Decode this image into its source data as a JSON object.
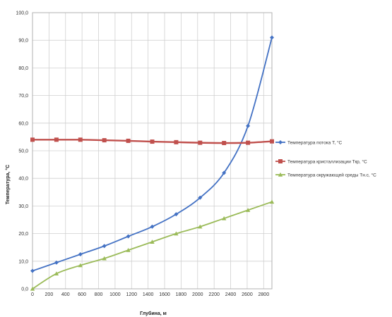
{
  "chart_data": {
    "type": "line",
    "title": "",
    "xlabel": "Глубина, м",
    "ylabel": "Температура, °С",
    "xlim": [
      0,
      2900
    ],
    "ylim": [
      0,
      100
    ],
    "grid": true,
    "legend_position": "right",
    "x_ticks": [
      0,
      200,
      400,
      600,
      800,
      1000,
      1200,
      1400,
      1600,
      1800,
      2000,
      2200,
      2400,
      2600,
      2800
    ],
    "y_ticks": [
      0,
      10,
      20,
      30,
      40,
      50,
      60,
      70,
      80,
      90,
      100
    ],
    "y_tick_labels": [
      "0,0",
      "10,0",
      "20,0",
      "30,0",
      "40,0",
      "50,0",
      "60,0",
      "70,0",
      "80,0",
      "90,0",
      "100,0"
    ],
    "series": [
      {
        "name": "Температура потока Т, °С",
        "color": "#4472c4",
        "marker": "diamond",
        "x": [
          0,
          290,
          580,
          870,
          1160,
          1450,
          1740,
          2030,
          2320,
          2610,
          2900
        ],
        "y": [
          6.5,
          9.5,
          12.5,
          15.5,
          19.0,
          22.5,
          27.0,
          33.0,
          42.0,
          59.0,
          91.0
        ]
      },
      {
        "name": "Температура кристаллизации Ткр, °С",
        "color": "#c0504d",
        "marker": "square",
        "x": [
          0,
          290,
          580,
          870,
          1160,
          1450,
          1740,
          2030,
          2320,
          2610,
          2900
        ],
        "y": [
          54.0,
          54.0,
          54.0,
          53.8,
          53.6,
          53.3,
          53.1,
          52.9,
          52.8,
          52.9,
          53.4
        ]
      },
      {
        "name": "Температура окружающей среды Тн.с, °С",
        "color": "#9bbb59",
        "marker": "triangle",
        "x": [
          0,
          290,
          580,
          870,
          1160,
          1450,
          1740,
          2030,
          2320,
          2610,
          2900
        ],
        "y": [
          0.0,
          5.5,
          8.5,
          11.0,
          14.0,
          17.0,
          20.0,
          22.5,
          25.5,
          28.5,
          31.5
        ]
      }
    ]
  }
}
